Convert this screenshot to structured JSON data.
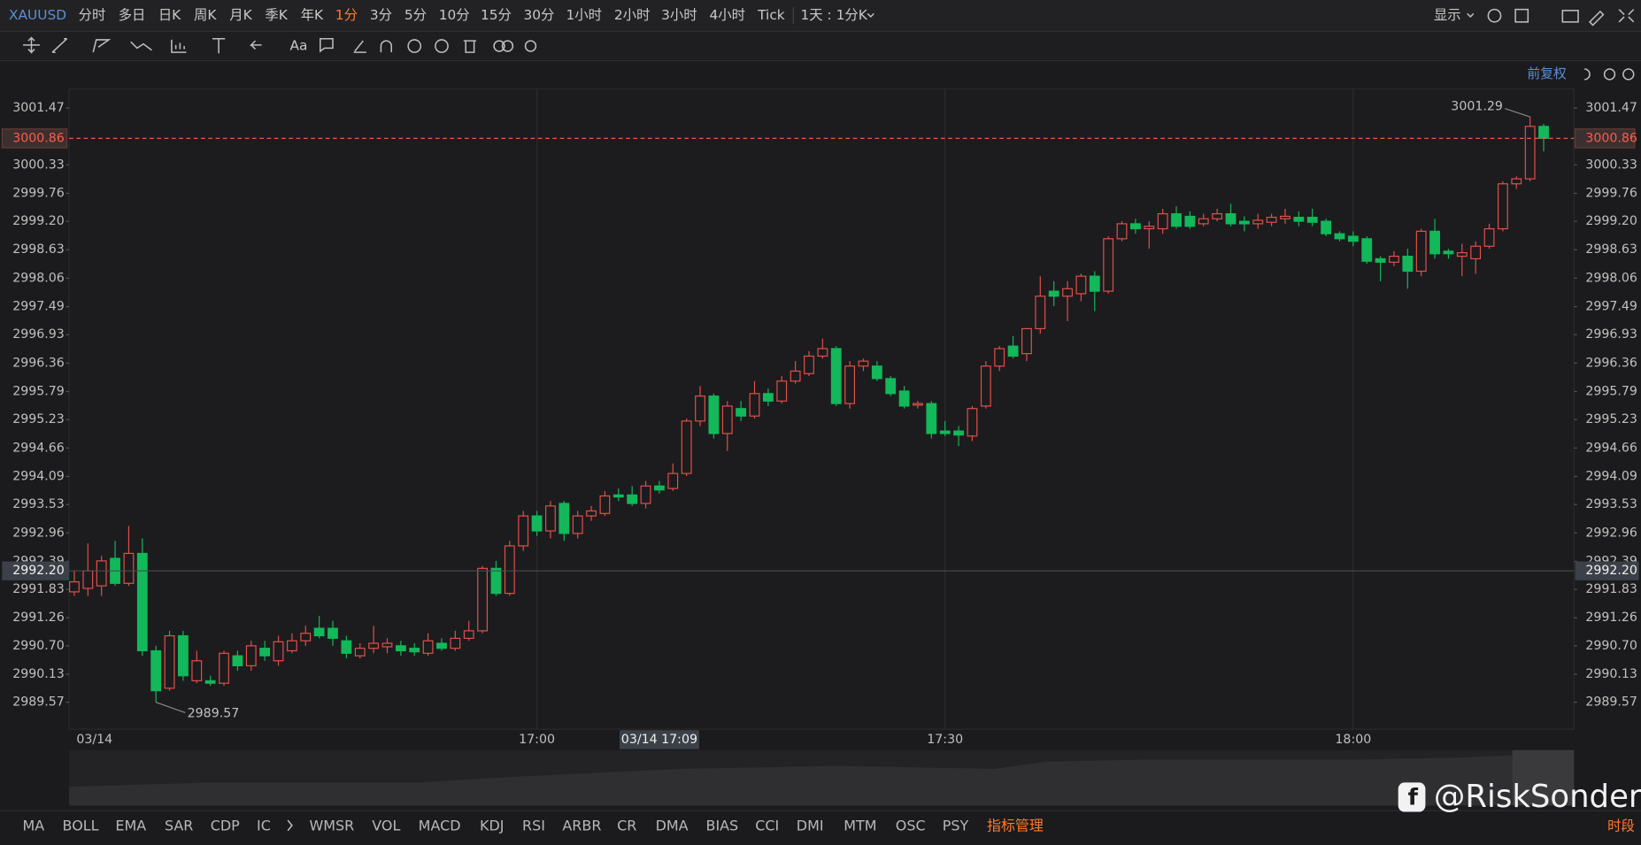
{
  "toolbar": {
    "symbol": "XAUUSD",
    "periods": [
      "分时",
      "多日",
      "日K",
      "周K",
      "月K",
      "季K",
      "年K",
      "1分",
      "3分",
      "5分",
      "10分",
      "15分",
      "30分",
      "1小时",
      "2小时",
      "3小时",
      "4小时",
      "Tick"
    ],
    "active_index": 7,
    "interval": "1天 : 1分K",
    "display": "显示"
  },
  "adjust_label": "前复权",
  "indicators": [
    "MA",
    "BOLL",
    "EMA",
    "SAR",
    "CDP",
    "IC",
    "WMSR",
    "VOL",
    "MACD",
    "KDJ",
    "RSI",
    "ARBR",
    "CR",
    "DMA",
    "BIAS",
    "CCI",
    "DMI",
    "MTM",
    "OSC",
    "PSY",
    "指标管理"
  ],
  "session_label": "时段",
  "watermark": "@RiskSonder",
  "chart_data": {
    "type": "candlestick",
    "up_color": "#e2504a",
    "down_color": "#12b85a",
    "categories": [
      "03/14",
      null,
      null,
      null,
      null,
      null,
      null,
      null,
      null,
      null,
      null,
      null,
      null,
      null,
      null,
      null,
      null,
      null,
      null,
      null,
      null,
      null,
      null,
      null,
      null,
      null,
      null,
      null,
      null,
      null,
      null,
      null,
      null,
      null,
      "17:00",
      null,
      null,
      null,
      null,
      null,
      null,
      null,
      null,
      null,
      null,
      null,
      null,
      null,
      null,
      null,
      null,
      null,
      null,
      null,
      null,
      null,
      null,
      null,
      null,
      null,
      null,
      null,
      null,
      null,
      "17:30",
      null,
      null,
      null,
      null,
      null,
      null,
      null,
      null,
      null,
      null,
      null,
      null,
      null,
      null,
      null,
      null,
      null,
      null,
      null,
      null,
      null,
      null,
      null,
      null,
      null,
      null,
      null,
      null,
      null,
      "18:00",
      null,
      null,
      null,
      null,
      null,
      null,
      null,
      null,
      null,
      null,
      null,
      null,
      null,
      null
    ],
    "open": [
      2991.78,
      2991.85,
      2991.9,
      2992.45,
      2991.95,
      2992.55,
      2990.6,
      2989.85,
      2990.9,
      2990.0,
      2990.0,
      2989.95,
      2990.5,
      2990.3,
      2990.65,
      2990.4,
      2990.6,
      2990.8,
      2991.05,
      2991.05,
      2990.8,
      2990.5,
      2990.65,
      2990.68,
      2990.7,
      2990.65,
      2990.55,
      2990.75,
      2990.65,
      2990.85,
      2991.0,
      2992.25,
      2991.75,
      2992.7,
      2993.3,
      2993.0,
      2993.55,
      2992.95,
      2993.3,
      2993.35,
      2993.72,
      2993.72,
      2993.55,
      2993.9,
      2993.85,
      2994.15,
      2995.2,
      2995.7,
      2994.95,
      2995.45,
      2995.3,
      2995.75,
      2995.6,
      2996.0,
      2996.15,
      2996.5,
      2996.65,
      2995.55,
      2996.3,
      2996.3,
      2996.05,
      2995.8,
      2995.52,
      2995.55,
      2995.0,
      2995.0,
      2994.9,
      2995.5,
      2996.3,
      2996.7,
      2996.55,
      2997.05,
      2997.8,
      2997.7,
      2997.75,
      2998.1,
      2997.8,
      2998.85,
      2999.15,
      2999.05,
      2999.05,
      2999.35,
      2999.3,
      2999.15,
      2999.25,
      2999.35,
      2999.2,
      2999.15,
      2999.18,
      2999.25,
      2999.28,
      2999.28,
      2999.2,
      2998.95,
      2998.9,
      2998.85,
      2998.45,
      2998.38,
      2998.5,
      2998.2,
      2999.0,
      2998.6,
      2998.5,
      2998.45,
      2998.7,
      2999.05,
      2999.95,
      3000.05,
      3001.1
    ],
    "high": [
      2992.2,
      2992.75,
      2992.5,
      2992.8,
      2993.1,
      2992.85,
      2990.7,
      2991.0,
      2991.0,
      2990.6,
      2990.1,
      2990.6,
      2990.6,
      2990.8,
      2990.8,
      2990.9,
      2990.95,
      2991.1,
      2991.3,
      2991.2,
      2990.9,
      2990.75,
      2991.1,
      2990.85,
      2990.8,
      2990.75,
      2990.95,
      2990.85,
      2991.0,
      2991.2,
      2992.3,
      2992.4,
      2992.8,
      2993.4,
      2993.4,
      2993.6,
      2993.6,
      2993.4,
      2993.5,
      2993.8,
      2993.85,
      2993.9,
      2994.0,
      2994.0,
      2994.35,
      2995.25,
      2995.9,
      2995.75,
      2995.6,
      2995.6,
      2996.0,
      2995.85,
      2996.1,
      2996.4,
      2996.6,
      2996.85,
      2996.7,
      2996.4,
      2996.45,
      2996.4,
      2996.1,
      2995.9,
      2995.6,
      2995.6,
      2995.2,
      2995.1,
      2995.5,
      2996.4,
      2996.7,
      2996.9,
      2997.05,
      2998.1,
      2998.0,
      2998.0,
      2998.15,
      2998.2,
      2998.9,
      2999.2,
      2999.25,
      2999.2,
      2999.45,
      2999.5,
      2999.4,
      2999.35,
      2999.45,
      2999.55,
      2999.3,
      2999.35,
      2999.35,
      2999.45,
      2999.4,
      2999.45,
      2999.25,
      2999.0,
      2999.0,
      2998.9,
      2998.5,
      2998.6,
      2998.65,
      2999.05,
      2999.25,
      2998.65,
      2998.75,
      2998.8,
      2999.15,
      3000.0,
      3000.1,
      3001.29,
      3001.15
    ],
    "low": [
      2991.7,
      2991.7,
      2991.7,
      2991.9,
      2991.9,
      2990.5,
      2989.57,
      2989.8,
      2990.0,
      2989.95,
      2989.9,
      2989.9,
      2990.2,
      2990.2,
      2990.4,
      2990.3,
      2990.55,
      2990.7,
      2990.85,
      2990.7,
      2990.45,
      2990.45,
      2990.55,
      2990.55,
      2990.5,
      2990.5,
      2990.5,
      2990.6,
      2990.6,
      2990.8,
      2990.95,
      2991.7,
      2991.7,
      2992.6,
      2992.9,
      2992.85,
      2992.8,
      2992.85,
      2993.2,
      2993.3,
      2993.6,
      2993.5,
      2993.45,
      2993.75,
      2993.8,
      2994.1,
      2995.1,
      2994.85,
      2994.6,
      2995.2,
      2995.25,
      2995.5,
      2995.55,
      2995.95,
      2996.1,
      2996.45,
      2995.5,
      2995.45,
      2996.2,
      2996.0,
      2995.7,
      2995.45,
      2995.45,
      2994.85,
      2994.9,
      2994.7,
      2994.8,
      2995.45,
      2996.2,
      2996.45,
      2996.4,
      2996.95,
      2997.5,
      2997.2,
      2997.6,
      2997.4,
      2997.75,
      2998.8,
      2998.95,
      2998.65,
      2998.95,
      2999.05,
      2999.05,
      2999.1,
      2999.2,
      2999.1,
      2999.0,
      2999.05,
      2999.1,
      2999.15,
      2999.1,
      2999.1,
      2998.9,
      2998.8,
      2998.7,
      2998.35,
      2998.0,
      2998.3,
      2997.85,
      2998.1,
      2998.45,
      2998.45,
      2998.1,
      2998.15,
      2998.65,
      2999.0,
      2999.85,
      3000.0,
      3000.6
    ],
    "close": [
      2991.98,
      2992.2,
      2992.4,
      2991.95,
      2992.55,
      2990.6,
      2989.8,
      2990.9,
      2990.1,
      2990.4,
      2989.95,
      2990.55,
      2990.3,
      2990.7,
      2990.5,
      2990.78,
      2990.8,
      2990.95,
      2990.9,
      2990.85,
      2990.55,
      2990.65,
      2990.75,
      2990.75,
      2990.6,
      2990.58,
      2990.8,
      2990.65,
      2990.85,
      2991.0,
      2992.25,
      2991.75,
      2992.7,
      2993.3,
      2993.0,
      2993.5,
      2992.95,
      2993.3,
      2993.4,
      2993.7,
      2993.68,
      2993.55,
      2993.9,
      2993.82,
      2994.15,
      2995.2,
      2995.7,
      2994.95,
      2995.5,
      2995.3,
      2995.75,
      2995.6,
      2996.0,
      2996.2,
      2996.5,
      2996.65,
      2995.55,
      2996.3,
      2996.4,
      2996.05,
      2995.75,
      2995.5,
      2995.55,
      2994.95,
      2994.95,
      2994.92,
      2995.45,
      2996.3,
      2996.65,
      2996.5,
      2997.05,
      2997.7,
      2997.7,
      2997.85,
      2998.1,
      2997.8,
      2998.85,
      2999.15,
      2999.05,
      2999.1,
      2999.35,
      2999.1,
      2999.1,
      2999.25,
      2999.35,
      2999.15,
      2999.15,
      2999.22,
      2999.28,
      2999.3,
      2999.2,
      2999.18,
      2998.95,
      2998.85,
      2998.8,
      2998.4,
      2998.38,
      2998.5,
      2998.2,
      2999.0,
      2998.55,
      2998.55,
      2998.57,
      2998.7,
      2999.05,
      2999.95,
      3000.05,
      3001.1,
      3000.86
    ],
    "ylim": [
      2989.03,
      3001.85
    ],
    "yticks": [
      {
        "value": 3001.47,
        "label": "3001.47"
      },
      {
        "value": 3000.33,
        "label": "3000.33"
      },
      {
        "value": 2999.76,
        "label": "2999.76"
      },
      {
        "value": 2999.2,
        "label": "2999.20"
      },
      {
        "value": 2998.63,
        "label": "2998.63"
      },
      {
        "value": 2998.06,
        "label": "2998.06"
      },
      {
        "value": 2997.49,
        "label": "2997.49"
      },
      {
        "value": 2996.93,
        "label": "2996.93"
      },
      {
        "value": 2996.36,
        "label": "2996.36"
      },
      {
        "value": 2995.79,
        "label": "2995.79"
      },
      {
        "value": 2995.23,
        "label": "2995.23"
      },
      {
        "value": 2994.66,
        "label": "2994.66"
      },
      {
        "value": 2994.09,
        "label": "2994.09"
      },
      {
        "value": 2993.53,
        "label": "2993.53"
      },
      {
        "value": 2992.96,
        "label": "2992.96"
      },
      {
        "value": 2992.39,
        "label": "2992.39"
      },
      {
        "value": 2991.83,
        "label": "2991.83"
      },
      {
        "value": 2991.26,
        "label": "2991.26"
      },
      {
        "value": 2990.7,
        "label": "2990.70"
      },
      {
        "value": 2990.13,
        "label": "2990.13"
      },
      {
        "value": 2989.57,
        "label": "2989.57"
      }
    ],
    "current_price": 3000.86,
    "crosshair": {
      "price": {
        "value": 2992.2,
        "label": "2992.20"
      },
      "time": "03/14 17:09",
      "time_index": 43
    },
    "high_label": 3001.29,
    "high_index": 107,
    "low_label": 2989.57,
    "low_index": 6
  }
}
